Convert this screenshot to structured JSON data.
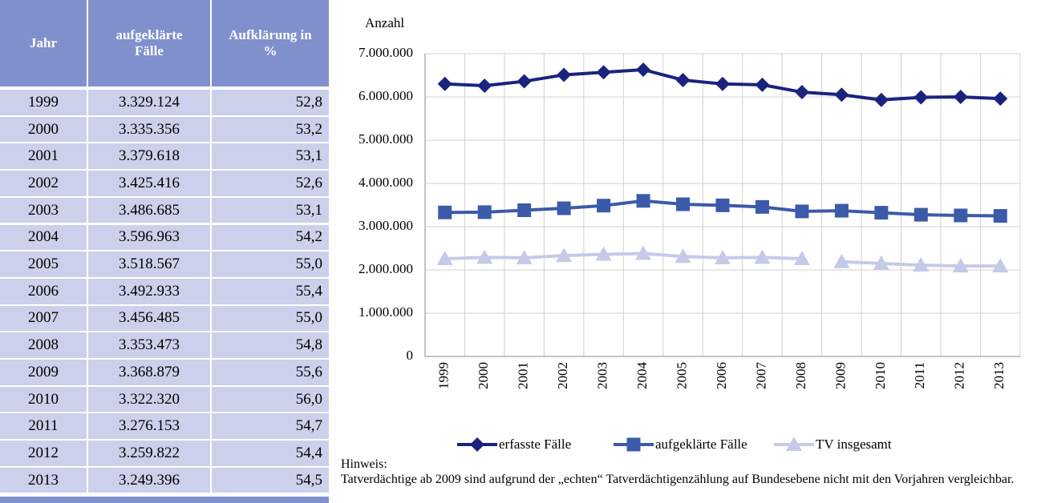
{
  "table": {
    "header": [
      "Jahr",
      "aufgeklärte Fälle",
      "Aufklärung in %"
    ],
    "rows": [
      [
        "1999",
        "3.329.124",
        "52,8"
      ],
      [
        "2000",
        "3.335.356",
        "53,2"
      ],
      [
        "2001",
        "3.379.618",
        "53,1"
      ],
      [
        "2002",
        "3.425.416",
        "52,6"
      ],
      [
        "2003",
        "3.486.685",
        "53,1"
      ],
      [
        "2004",
        "3.596.963",
        "54,2"
      ],
      [
        "2005",
        "3.518.567",
        "55,0"
      ],
      [
        "2006",
        "3.492.933",
        "55,4"
      ],
      [
        "2007",
        "3.456.485",
        "55,0"
      ],
      [
        "2008",
        "3.353.473",
        "54,8"
      ],
      [
        "2009",
        "3.368.879",
        "55,6"
      ],
      [
        "2010",
        "3.322.320",
        "56,0"
      ],
      [
        "2011",
        "3.276.153",
        "54,7"
      ],
      [
        "2012",
        "3.259.822",
        "54,4"
      ],
      [
        "2013",
        "3.249.396",
        "54,5"
      ]
    ]
  },
  "chart_data": {
    "type": "line",
    "y_label": "Anzahl",
    "categories": [
      "1999",
      "2000",
      "2001",
      "2002",
      "2003",
      "2004",
      "2005",
      "2006",
      "2007",
      "2008",
      "2009",
      "2010",
      "2011",
      "2012",
      "2013"
    ],
    "series": [
      {
        "name": "erfasste Fälle",
        "color": "#1a237e",
        "marker": "diamond",
        "values": [
          6300000,
          6260000,
          6360000,
          6510000,
          6570000,
          6630000,
          6390000,
          6300000,
          6280000,
          6110000,
          6050000,
          5930000,
          5990000,
          6000000,
          5960000
        ]
      },
      {
        "name": "aufgeklärte Fälle",
        "color": "#3b5ba9",
        "marker": "square",
        "values": [
          3329124,
          3335356,
          3379618,
          3425416,
          3486685,
          3596963,
          3518567,
          3492933,
          3456485,
          3353473,
          3368879,
          3322320,
          3276153,
          3259822,
          3249396
        ]
      },
      {
        "name": "TV insgesamt",
        "color": "#c5cae9",
        "marker": "triangle",
        "break_before": "2009",
        "values": [
          2260000,
          2290000,
          2280000,
          2330000,
          2360000,
          2380000,
          2310000,
          2280000,
          2290000,
          2260000,
          2190000,
          2150000,
          2110000,
          2090000,
          2090000
        ]
      }
    ],
    "ylim": [
      0,
      7000000
    ],
    "yticks": [
      0,
      {
        "value": 1000000,
        "label": "1.000.000"
      },
      {
        "value": 2000000,
        "label": "2.000.000"
      },
      {
        "value": 3000000,
        "label": "3.000.000"
      },
      {
        "value": 4000000,
        "label": "4.000.000"
      },
      {
        "value": 5000000,
        "label": "5.000.000"
      },
      {
        "value": 6000000,
        "label": "6.000.000"
      },
      {
        "value": 7000000,
        "label": "7.000.000"
      }
    ],
    "grid": true,
    "legend": "bottom"
  },
  "note": {
    "title": "Hinweis:",
    "text": "Tatverdächtige ab 2009 sind aufgrund der „echten“ Tatverdächtigenzählung auf Bundesebene nicht mit den Vorjahren vergleichbar."
  }
}
